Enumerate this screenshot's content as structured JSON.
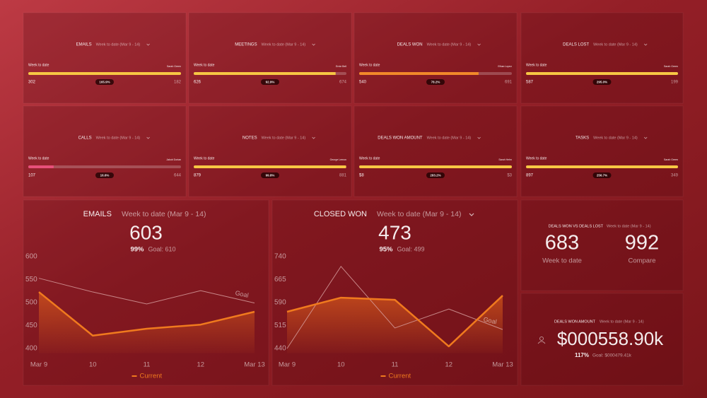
{
  "kpi_tiles": [
    {
      "title": "EMAILS",
      "period": "Week to date (Mar 9 - 14)",
      "bar_label": "Week to date",
      "owner": "Sarah Green",
      "value": 302,
      "percent": 165.9,
      "percent_label": "165.9%",
      "goal": 182,
      "color": "#f7c744"
    },
    {
      "title": "MEETINGS",
      "period": "Week to date (Mar 9 - 14)",
      "bar_label": "Week to date",
      "owner": "Ernie Bell",
      "value": 626,
      "percent": 92.9,
      "percent_label": "92.9%",
      "goal": 674,
      "color": "#f7c744"
    },
    {
      "title": "DEALS WON",
      "period": "Week to date (Mar 9 - 14)",
      "bar_label": "Week to date",
      "owner": "Ethan Lopez",
      "value": 540,
      "percent": 78.2,
      "percent_label": "78.2%",
      "goal": 691,
      "color": "#f2892a"
    },
    {
      "title": "DEALS LOST",
      "period": "Week to date (Mar 9 - 14)",
      "bar_label": "Week to date",
      "owner": "Sarah Green",
      "value": 587,
      "percent": 295.0,
      "percent_label": "295.0%",
      "goal": 199,
      "color": "#f7c744"
    },
    {
      "title": "CALLS",
      "period": "Week to date (Mar 9 - 14)",
      "bar_label": "Week to date",
      "owner": "Jakob Dorian",
      "value": 107,
      "percent": 16.6,
      "percent_label": "16.6%",
      "goal": 644,
      "color": "#e8507a"
    },
    {
      "title": "NOTES",
      "period": "Week to date (Mar 9 - 14)",
      "bar_label": "Week to date",
      "owner": "George Lemon",
      "value": 879,
      "percent": 99.8,
      "percent_label": "99.8%",
      "goal": 881,
      "color": "#f7c744"
    },
    {
      "title": "DEALS WON AMOUNT",
      "period": "Week to date (Mar 9 - 14)",
      "bar_label": "Week to date",
      "owner": "Sarah Hehn",
      "value": "$8",
      "percent": 283.2,
      "percent_label": "283.2%",
      "goal": "$3",
      "color": "#f7c744"
    },
    {
      "title": "TASKS",
      "period": "Week to date (Mar 9 - 14)",
      "bar_label": "Week to date",
      "owner": "Sarah Green",
      "value": 897,
      "percent": 256.7,
      "percent_label": "256.7%",
      "goal": 349,
      "color": "#f7c744"
    }
  ],
  "line_charts": [
    {
      "type": "line",
      "title": "EMAILS",
      "period": "Week to date (Mar 9 - 14)",
      "value": 603,
      "percent_label": "99%",
      "goal_label": "Goal: 610",
      "categories": [
        "Mar 9",
        "10",
        "11",
        "12",
        "Mar 13"
      ],
      "ylim": [
        390,
        610
      ],
      "yticks": [
        400,
        450,
        500,
        550,
        600
      ],
      "series": [
        {
          "name": "Current",
          "color": "#f07a1e",
          "values": [
            523,
            428,
            443,
            452,
            480
          ]
        },
        {
          "name": "Goal",
          "color": "#d9a3a3",
          "values": [
            553,
            523,
            497,
            526,
            499
          ]
        }
      ]
    },
    {
      "type": "line",
      "title": "CLOSED WON",
      "period": "Week to date (Mar 9 - 14)",
      "value": 473,
      "percent_label": "95%",
      "goal_label": "Goal: 499",
      "categories": [
        "Mar 9",
        "10",
        "11",
        "12",
        "Mar 13"
      ],
      "ylim": [
        425,
        755
      ],
      "yticks": [
        440,
        515,
        590,
        665,
        740
      ],
      "series": [
        {
          "name": "Current",
          "color": "#f07a1e",
          "values": [
            560,
            606,
            599,
            447,
            613
          ]
        },
        {
          "name": "Goal",
          "color": "#d9a3a3",
          "values": [
            440,
            708,
            507,
            569,
            502
          ]
        }
      ]
    }
  ],
  "comparison": {
    "title": "DEALS WON VS DEALS LOST",
    "period": "Week to date (Mar 9 - 14)",
    "items": [
      {
        "value": 683,
        "label": "Week to date"
      },
      {
        "value": 992,
        "label": "Compare"
      }
    ]
  },
  "amount": {
    "title": "DEALS WON AMOUNT",
    "period": "Week to date (Mar 9 - 14)",
    "value": "$000558.90k",
    "percent_label": "117%",
    "goal_label": "Goal: $000479.41k"
  }
}
